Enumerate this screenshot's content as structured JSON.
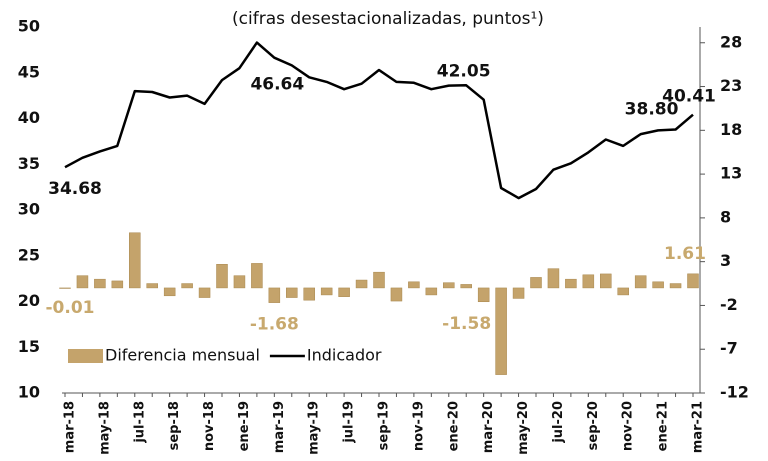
{
  "chart_data": {
    "type": "bar-line",
    "subtitle": "(cifras desestacionalizadas, puntos¹)",
    "categories": [
      "mar-18",
      null,
      "may-18",
      null,
      "jul-18",
      null,
      "sep-18",
      null,
      "nov-18",
      null,
      "ene-19",
      null,
      "mar-19",
      null,
      "may-19",
      null,
      "jul-19",
      null,
      "sep-19",
      null,
      "nov-19",
      null,
      "ene-20",
      null,
      "mar-20",
      null,
      "may-20",
      null,
      "jul-20",
      null,
      "sep-20",
      null,
      "nov-20",
      null,
      "ene-21",
      null,
      "mar-21"
    ],
    "series": [
      {
        "name": "Diferencia mensual",
        "type": "bar",
        "axis": "y2",
        "color": "#c4a36b",
        "values": [
          -0.01,
          1.4,
          1.0,
          0.8,
          6.3,
          0.5,
          -0.9,
          0.5,
          -1.1,
          2.7,
          1.4,
          2.8,
          -1.68,
          -1.1,
          -1.4,
          -0.8,
          -1.0,
          0.9,
          1.8,
          -1.5,
          0.7,
          -0.8,
          0.6,
          0.4,
          -1.58,
          -9.9,
          -1.2,
          1.2,
          2.2,
          1.0,
          1.5,
          1.6,
          -0.8,
          1.4,
          0.7,
          0.5,
          1.61
        ],
        "value_labels": [
          "-0.01",
          null,
          null,
          null,
          null,
          null,
          null,
          null,
          null,
          null,
          null,
          null,
          "-1.68",
          null,
          null,
          null,
          null,
          null,
          null,
          null,
          null,
          null,
          null,
          null,
          "-1.58",
          null,
          null,
          null,
          null,
          null,
          null,
          null,
          null,
          null,
          null,
          null,
          "1.61"
        ],
        "label_color": "#c8a96e"
      },
      {
        "name": "Indicador",
        "type": "line",
        "axis": "y",
        "color": "#000000",
        "values": [
          34.68,
          35.7,
          36.4,
          37.0,
          43.0,
          42.9,
          42.3,
          42.5,
          41.6,
          44.2,
          45.5,
          48.3,
          46.64,
          45.8,
          44.5,
          44.0,
          43.2,
          43.8,
          45.3,
          44.0,
          43.9,
          43.2,
          43.6,
          43.63,
          42.05,
          32.4,
          31.3,
          32.3,
          34.4,
          35.1,
          36.3,
          37.7,
          37.0,
          38.3,
          38.7,
          38.8,
          40.41
        ],
        "value_labels": [
          "34.68",
          null,
          null,
          null,
          null,
          null,
          null,
          null,
          null,
          null,
          null,
          null,
          "46.64",
          null,
          null,
          null,
          null,
          null,
          null,
          null,
          null,
          null,
          null,
          null,
          "42.05",
          null,
          null,
          null,
          null,
          null,
          null,
          null,
          null,
          null,
          null,
          "38.80",
          "40.41"
        ],
        "label_color": "#111111"
      }
    ],
    "ylim": [
      10,
      50
    ],
    "yticks": [
      10,
      15,
      20,
      25,
      30,
      35,
      40,
      45,
      50
    ],
    "y2lim": [
      -12,
      29.8
    ],
    "y2ticks": [
      -12,
      -7,
      -2,
      3,
      8,
      13,
      18,
      23,
      28
    ],
    "grid": false,
    "legend": "lower left"
  }
}
